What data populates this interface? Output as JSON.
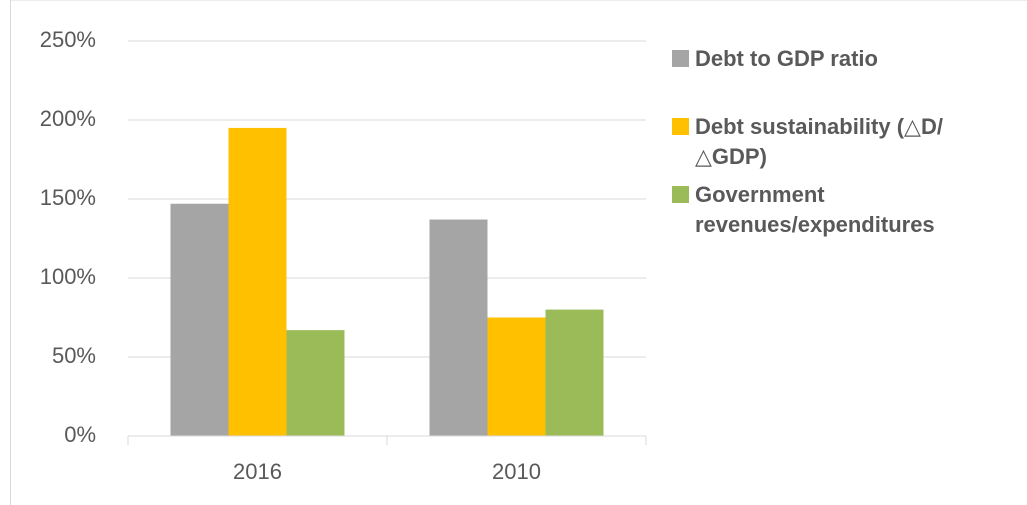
{
  "chart_data": {
    "type": "bar",
    "categories": [
      "2016",
      "2010"
    ],
    "series": [
      {
        "name": "Debt to GDP ratio",
        "color": "#a5a5a5",
        "values": [
          147,
          137
        ]
      },
      {
        "name": "Debt sustainability (△D/△GDP)",
        "color": "#ffc000",
        "values": [
          195,
          75
        ]
      },
      {
        "name": "Government revenues/expenditures",
        "color": "#9bbb59",
        "values": [
          67,
          80
        ]
      }
    ],
    "ylim": [
      0,
      250
    ],
    "yticks": [
      {
        "value": 0,
        "label": "0%"
      },
      {
        "value": 50,
        "label": "50%"
      },
      {
        "value": 100,
        "label": "100%"
      },
      {
        "value": 150,
        "label": "150%"
      },
      {
        "value": 200,
        "label": "200%"
      },
      {
        "value": 250,
        "label": "250%"
      }
    ],
    "grid": true,
    "legend": "right"
  }
}
